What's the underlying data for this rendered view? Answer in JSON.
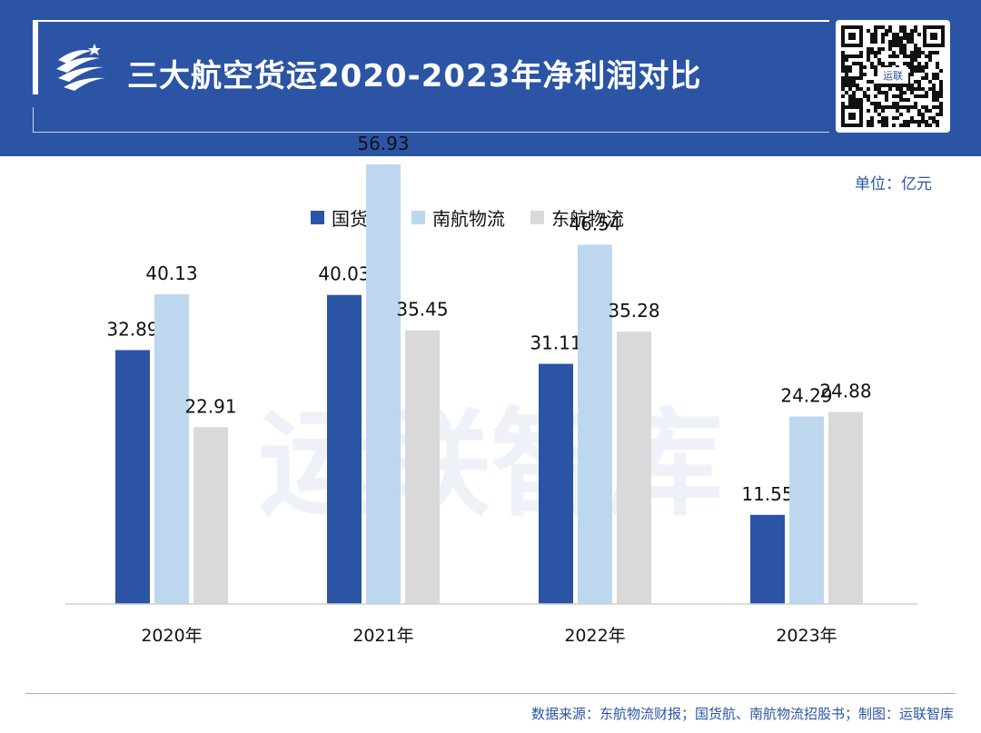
{
  "header": {
    "title": "三大航空货运2020-2023年净利润对比"
  },
  "unit_label": "单位：亿元",
  "qr_caption": "运联",
  "watermark": "运联智库",
  "source_text": "数据来源：东航物流财报；国货航、南航物流招股书；制图：运联智库",
  "colors": {
    "header_bg": "#2b54a4",
    "series_1": "#2b54a4",
    "series_2": "#bdd7ee",
    "series_3": "#d9d9d9"
  },
  "chart_data": {
    "type": "bar",
    "title": "三大航空货运2020-2023年净利润对比",
    "ylabel": "单位：亿元",
    "xlabel": "",
    "ylim": [
      0,
      60
    ],
    "grid": false,
    "legend_position": "top-center",
    "categories": [
      "2020年",
      "2021年",
      "2022年",
      "2023年"
    ],
    "series": [
      {
        "name": "国货航",
        "color": "#2b54a4",
        "values": [
          32.89,
          40.03,
          31.11,
          11.55
        ],
        "labels": [
          "32.89",
          "40.03",
          "31.11",
          "11.55"
        ]
      },
      {
        "name": "南航物流",
        "color": "#bdd7ee",
        "values": [
          40.13,
          56.93,
          46.54,
          24.29
        ],
        "labels": [
          "40.13",
          "56.93",
          "46.54",
          "24.29"
        ]
      },
      {
        "name": "东航物流",
        "color": "#d9d9d9",
        "values": [
          22.91,
          35.45,
          35.28,
          24.88
        ],
        "labels": [
          "22.91",
          "35.45",
          "35.28",
          "24.88"
        ]
      }
    ]
  }
}
